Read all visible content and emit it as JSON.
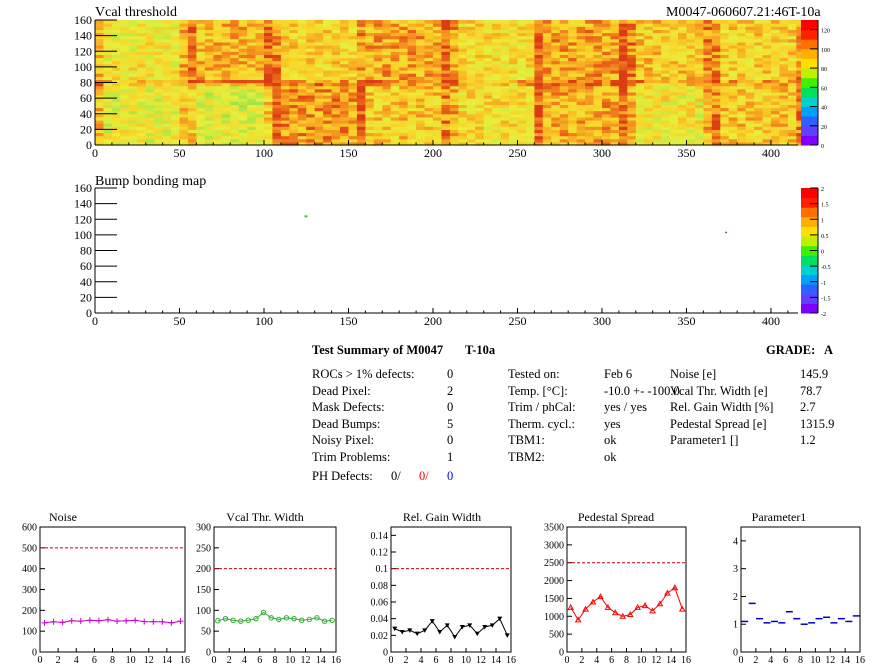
{
  "maps": [
    {
      "title": "Vcal threshold",
      "x_ticks": [
        "0",
        "50",
        "100",
        "150",
        "200",
        "250",
        "300",
        "350",
        "400"
      ],
      "y_ticks": [
        "0",
        "20",
        "40",
        "60",
        "80",
        "100",
        "120",
        "140",
        "160"
      ],
      "palette_ticks": [
        "0",
        "20",
        "40",
        "60",
        "80",
        "100",
        "120"
      ],
      "xlim": [
        0,
        416
      ],
      "ylim": [
        0,
        160
      ]
    },
    {
      "title": "Bump bonding map",
      "x_ticks": [
        "0",
        "50",
        "100",
        "150",
        "200",
        "250",
        "300",
        "350",
        "400"
      ],
      "y_ticks": [
        "0",
        "20",
        "40",
        "60",
        "80",
        "100",
        "120",
        "140",
        "160"
      ],
      "palette_ticks": [
        "-2",
        "-1.5",
        "-1",
        "-0.5",
        "0",
        "0.5",
        "1",
        "1.5",
        "2"
      ],
      "xlim": [
        0,
        416
      ],
      "ylim": [
        0,
        160
      ]
    }
  ],
  "top_right_label": "M0047-060607.21:46T-10a",
  "summary": {
    "heading": "Test Summary of M0047",
    "heading_temp": "T-10a",
    "grade_label": "GRADE:",
    "grade_value": "A",
    "left_rows": [
      {
        "label": "ROCs > 1% defects:",
        "value": "0"
      },
      {
        "label": "Dead Pixel:",
        "value": "2"
      },
      {
        "label": "Mask Defects:",
        "value": "0"
      },
      {
        "label": "Dead Bumps:",
        "value": "5"
      },
      {
        "label": "Noisy Pixel:",
        "value": "0"
      },
      {
        "label": "Trim Problems:",
        "value": "1"
      }
    ],
    "ph_label": "PH Defects:",
    "ph_values": [
      {
        "text": "0/",
        "color": "#000000"
      },
      {
        "text": "0/",
        "color": "#ff0000"
      },
      {
        "text": "0",
        "color": "#0000ff"
      }
    ],
    "mid_rows": [
      {
        "label": "Tested on:",
        "value": "Feb 6"
      },
      {
        "label": "Temp. [°C]:",
        "value": "-10.0 +- -100.0"
      },
      {
        "label": "Trim / phCal:",
        "value": "yes / yes"
      },
      {
        "label": "Therm. cycl.:",
        "value": "yes"
      },
      {
        "label": "TBM1:",
        "value": "ok"
      },
      {
        "label": "TBM2:",
        "value": "ok"
      }
    ],
    "right_rows": [
      {
        "label": "Noise [e]",
        "value": "145.9"
      },
      {
        "label": "Vcal Thr. Width [e]",
        "value": "78.7"
      },
      {
        "label": "Rel. Gain Width [%]",
        "value": "2.7"
      },
      {
        "label": "Pedestal Spread [e]",
        "value": "1315.9"
      },
      {
        "label": "Parameter1 []",
        "value": "1.2"
      }
    ]
  },
  "chart_data": [
    {
      "type": "line",
      "title": "Noise",
      "color": "#cc00cc",
      "marker": "cross",
      "x": [
        0,
        1,
        2,
        3,
        4,
        5,
        6,
        7,
        8,
        9,
        10,
        11,
        12,
        13,
        14,
        15
      ],
      "values": [
        140,
        145,
        142,
        150,
        148,
        152,
        150,
        155,
        148,
        150,
        152,
        146,
        145,
        145,
        140,
        148
      ],
      "ylim": [
        0,
        600
      ],
      "threshold": 500,
      "y_ticks": [
        "0",
        "100",
        "200",
        "300",
        "400",
        "500",
        "600"
      ]
    },
    {
      "type": "line",
      "title": "Vcal Thr. Width",
      "color": "#33aa33",
      "marker": "circle",
      "x": [
        0,
        1,
        2,
        3,
        4,
        5,
        6,
        7,
        8,
        9,
        10,
        11,
        12,
        13,
        14,
        15
      ],
      "values": [
        75,
        80,
        76,
        74,
        76,
        80,
        95,
        82,
        78,
        82,
        80,
        76,
        78,
        82,
        74,
        76
      ],
      "ylim": [
        0,
        300
      ],
      "threshold": 200,
      "y_ticks": [
        "0",
        "50",
        "100",
        "150",
        "200",
        "250",
        "300"
      ]
    },
    {
      "type": "line",
      "title": "Rel. Gain Width",
      "color": "#000000",
      "marker": "triangle",
      "x": [
        0,
        1,
        2,
        3,
        4,
        5,
        6,
        7,
        8,
        9,
        10,
        11,
        12,
        13,
        14,
        15
      ],
      "values": [
        0.028,
        0.024,
        0.026,
        0.022,
        0.026,
        0.037,
        0.024,
        0.032,
        0.018,
        0.03,
        0.032,
        0.022,
        0.03,
        0.032,
        0.04,
        0.02
      ],
      "ylim": [
        0,
        0.15
      ],
      "threshold": 0.1,
      "y_ticks": [
        "0",
        "0.02",
        "0.04",
        "0.06",
        "0.08",
        "0.1",
        "0.12",
        "0.14"
      ]
    },
    {
      "type": "line",
      "title": "Pedestal Spread",
      "color": "#ff0000",
      "marker": "triangle-open",
      "x": [
        0,
        1,
        2,
        3,
        4,
        5,
        6,
        7,
        8,
        9,
        10,
        11,
        12,
        13,
        14,
        15
      ],
      "values": [
        1250,
        900,
        1200,
        1400,
        1550,
        1250,
        1100,
        1000,
        1050,
        1250,
        1300,
        1150,
        1350,
        1650,
        1800,
        1200
      ],
      "ylim": [
        0,
        3500
      ],
      "threshold": 2500,
      "y_ticks": [
        "0",
        "500",
        "1000",
        "1500",
        "2000",
        "2500",
        "3000",
        "3500"
      ]
    },
    {
      "type": "scatter",
      "title": "Parameter1",
      "color": "#0000cc",
      "marker": "dash",
      "x": [
        0,
        1,
        2,
        3,
        4,
        5,
        6,
        7,
        8,
        9,
        10,
        11,
        12,
        13,
        14,
        15
      ],
      "values": [
        1.1,
        1.75,
        1.2,
        1.05,
        1.1,
        1.05,
        1.45,
        1.2,
        1.0,
        1.05,
        1.2,
        1.25,
        1.05,
        1.2,
        1.1,
        1.3
      ],
      "ylim": [
        0,
        4.5
      ],
      "threshold": null,
      "y_ticks": [
        "0",
        "1",
        "2",
        "3",
        "4"
      ]
    }
  ],
  "x_ticks_small": [
    "0",
    "2",
    "4",
    "6",
    "8",
    "10",
    "12",
    "14",
    "16"
  ]
}
